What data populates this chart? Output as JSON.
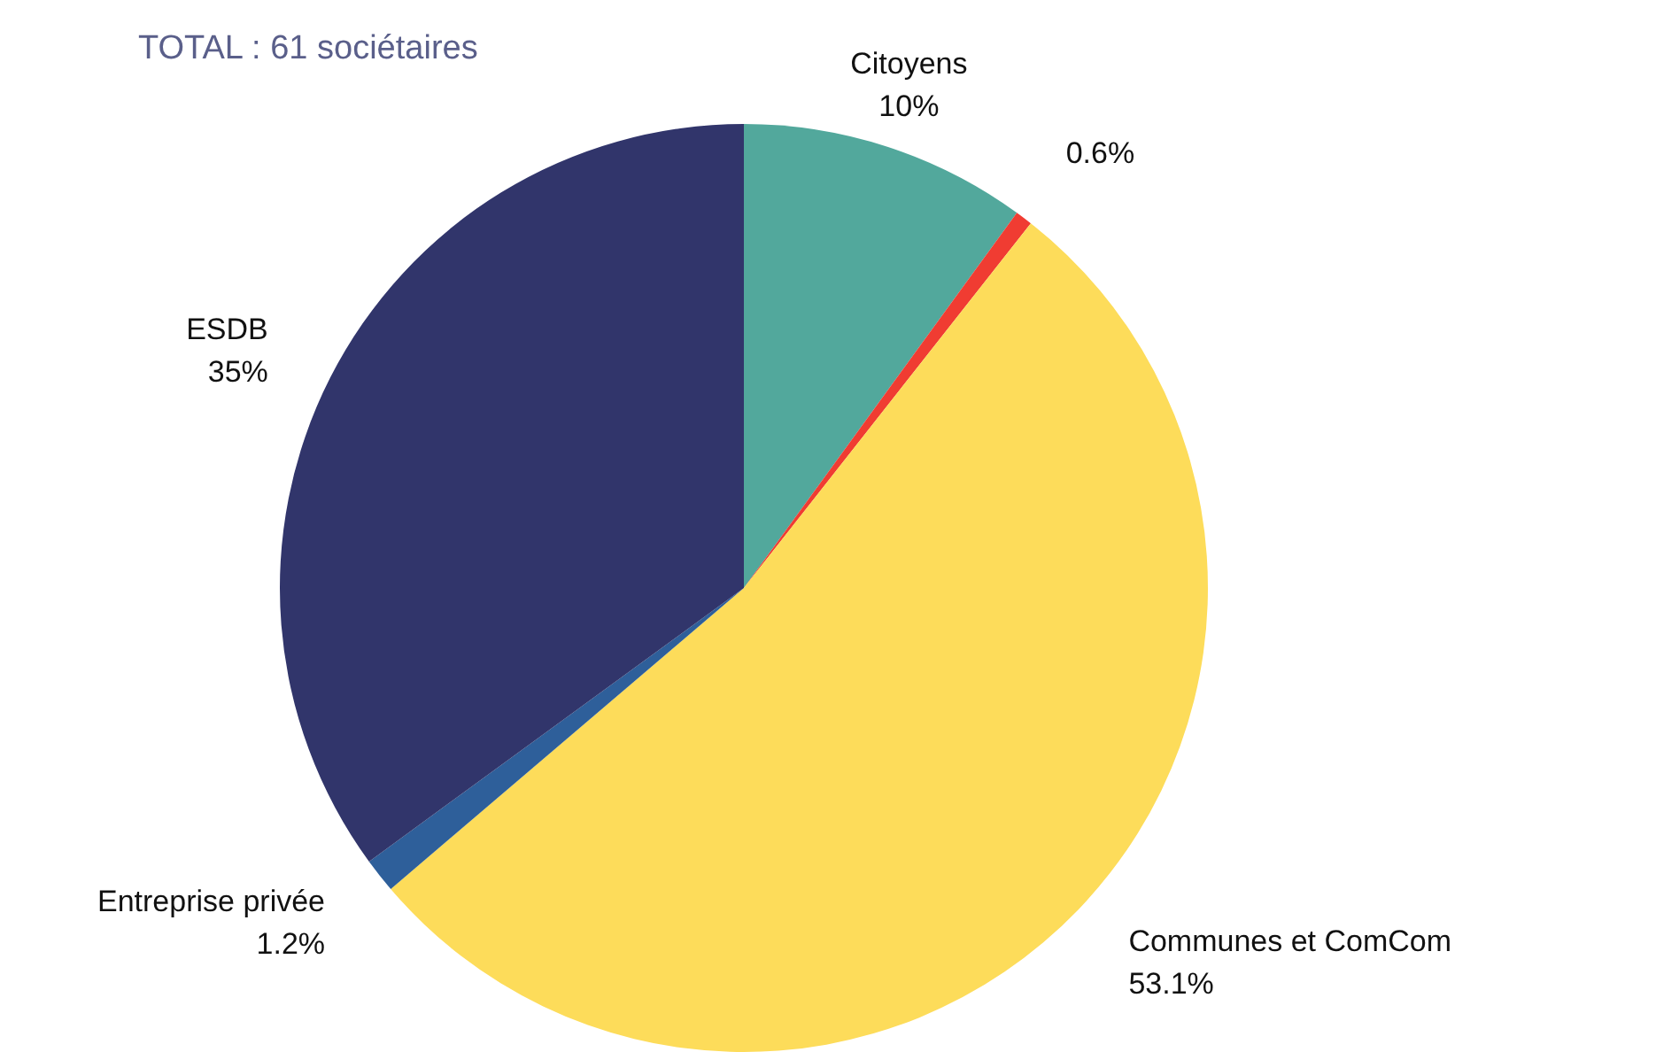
{
  "chart_data": {
    "type": "pie",
    "title": "TOTAL : 61 sociétaires",
    "categories": [
      "Citoyens",
      null,
      "Communes et ComCom",
      "Entreprise privée",
      "ESDB"
    ],
    "values": [
      10,
      0.6,
      53.1,
      1.2,
      35
    ],
    "value_labels": [
      "10%",
      "0.6%",
      "53.1%",
      "1.2%",
      "35%"
    ],
    "colors": [
      "#52a89c",
      "#f03c32",
      "#fddc5a",
      "#2e5f9a",
      "#31356b"
    ]
  }
}
